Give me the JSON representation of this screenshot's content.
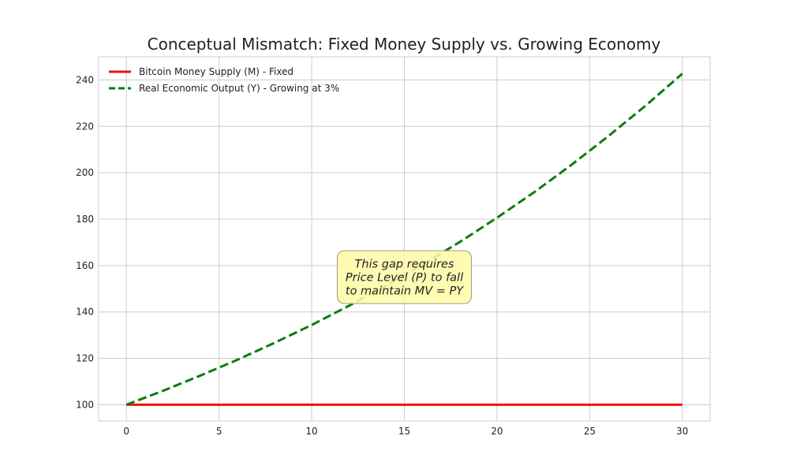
{
  "chart_data": {
    "type": "line",
    "title": "Conceptual Mismatch: Fixed Money Supply vs. Growing Economy",
    "xlabel": "",
    "ylabel": "",
    "xlim": [
      -1.5,
      31.5
    ],
    "ylim": [
      93,
      250
    ],
    "x_ticks": [
      0,
      5,
      10,
      15,
      20,
      25,
      30
    ],
    "y_ticks": [
      100,
      120,
      140,
      160,
      180,
      200,
      220,
      240
    ],
    "grid": true,
    "legend_position": "top-left",
    "series": [
      {
        "name": "Bitcoin Money Supply (M) - Fixed",
        "color": "#e8140f",
        "style": "solid",
        "x": [
          0,
          5,
          10,
          15,
          20,
          25,
          30
        ],
        "y": [
          100,
          100,
          100,
          100,
          100,
          100,
          100
        ]
      },
      {
        "name": "Real Economic Output (Y) - Growing at 3%",
        "color": "#0a7d0a",
        "style": "dashed",
        "x": [
          0,
          2,
          4,
          6,
          8,
          10,
          12,
          14,
          16,
          18,
          20,
          22,
          24,
          26,
          28,
          30
        ],
        "y": [
          100,
          106.1,
          112.6,
          119.4,
          126.7,
          134.4,
          142.6,
          151.3,
          160.5,
          170.2,
          180.6,
          191.6,
          203.3,
          215.7,
          228.8,
          242.7
        ]
      }
    ],
    "annotation": {
      "lines": [
        "This gap requires",
        "Price Level (P) to fall",
        "to maintain MV = PY"
      ],
      "x": 15,
      "y": 155,
      "box_color": "#fffba8",
      "border_color": "#a8a890"
    }
  }
}
